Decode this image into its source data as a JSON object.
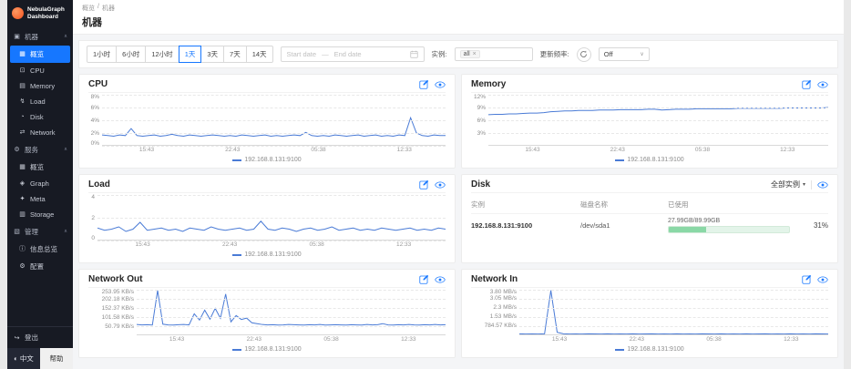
{
  "app": {
    "name_line1": "NebulaGraph",
    "name_line2": "Dashboard"
  },
  "header": {
    "breadcrumb": [
      "概览",
      "机器"
    ],
    "separator": "/",
    "title": "机器"
  },
  "sidebar": {
    "sections": [
      {
        "id": "machine",
        "label": "机器",
        "icon": "machine",
        "items": [
          {
            "id": "machine-overview",
            "label": "概览",
            "icon": "overview",
            "active": true
          },
          {
            "id": "cpu",
            "label": "CPU",
            "icon": "cpu"
          },
          {
            "id": "memory",
            "label": "Memory",
            "icon": "memory"
          },
          {
            "id": "load",
            "label": "Load",
            "icon": "load"
          },
          {
            "id": "disk",
            "label": "Disk",
            "icon": "disk"
          },
          {
            "id": "network",
            "label": "Network",
            "icon": "network"
          }
        ]
      },
      {
        "id": "service",
        "label": "服务",
        "icon": "service",
        "items": [
          {
            "id": "service-overview",
            "label": "概览",
            "icon": "overview"
          },
          {
            "id": "graph",
            "label": "Graph",
            "icon": "graph"
          },
          {
            "id": "meta",
            "label": "Meta",
            "icon": "meta"
          },
          {
            "id": "storage",
            "label": "Storage",
            "icon": "storage"
          }
        ]
      },
      {
        "id": "manage",
        "label": "管理",
        "icon": "manage",
        "items": [
          {
            "id": "info-overview",
            "label": "信息总览",
            "icon": "info"
          },
          {
            "id": "config",
            "label": "配置",
            "icon": "config"
          }
        ]
      }
    ],
    "logout_label": "登出",
    "lang_button": "中文",
    "help_button": "帮助"
  },
  "toolbar": {
    "time_ranges": [
      "1小时",
      "6小时",
      "12小时",
      "1天",
      "3天",
      "7天",
      "14天"
    ],
    "active_range": "1天",
    "start_placeholder": "Start date",
    "range_separator": "—",
    "end_placeholder": "End date",
    "instance_label": "实例:",
    "instance_value": "all",
    "frequency_label": "更新频率:",
    "frequency_value": "Off"
  },
  "charts": [
    {
      "id": "cpu",
      "type": "line",
      "title": "CPU",
      "legend": "192.168.8.131:9100",
      "ymin": 0,
      "ymax": 8,
      "yticks": [
        {
          "label": "8%",
          "value": 8
        },
        {
          "label": "6%",
          "value": 6
        },
        {
          "label": "4%",
          "value": 4
        },
        {
          "label": "2%",
          "value": 2
        },
        {
          "label": "0%",
          "value": 0
        }
      ],
      "xticks": [
        "15:43",
        "22:43",
        "05:38",
        "12:33"
      ],
      "values": [
        1.7,
        1.6,
        1.5,
        1.7,
        1.6,
        2.7,
        1.6,
        1.5,
        1.6,
        1.7,
        1.5,
        1.6,
        1.8,
        1.6,
        1.5,
        1.7,
        1.6,
        1.5,
        1.6,
        1.7,
        1.6,
        1.5,
        1.6,
        1.5,
        1.7,
        1.6,
        1.5,
        1.6,
        1.7,
        1.5,
        1.6,
        1.5,
        1.6,
        1.7,
        1.6,
        2.1,
        1.6,
        1.5,
        1.6,
        1.5,
        1.7,
        1.6,
        1.5,
        1.6,
        1.7,
        1.5,
        1.6,
        1.7,
        1.5,
        1.6,
        1.5,
        1.7,
        1.6,
        4.4,
        2.0,
        1.6,
        1.5,
        1.7,
        1.6,
        1.6
      ]
    },
    {
      "id": "memory",
      "type": "line",
      "title": "Memory",
      "legend": "192.168.8.131:9100",
      "ymin": 0,
      "ymax": 12,
      "yticks": [
        {
          "label": "12%",
          "value": 12
        },
        {
          "label": "9%",
          "value": 9
        },
        {
          "label": "6%",
          "value": 6
        },
        {
          "label": "3%",
          "value": 3
        }
      ],
      "xticks": [
        "15:43",
        "22:43",
        "05:38",
        "12:33"
      ],
      "values": [
        7.3,
        7.4,
        7.4,
        7.5,
        7.5,
        7.6,
        7.7,
        7.7,
        7.8,
        8.0,
        8.1,
        8.2,
        8.2,
        8.3,
        8.3,
        8.3,
        8.4,
        8.4,
        8.4,
        8.5,
        8.5,
        8.5,
        8.5,
        8.6,
        8.6,
        8.4,
        8.5,
        8.6,
        8.6,
        8.6,
        8.7,
        8.7,
        8.7,
        8.7,
        8.7,
        8.7,
        8.8,
        8.8,
        8.8,
        8.8,
        8.8,
        8.8,
        8.8,
        8.9,
        8.9,
        8.9,
        8.9,
        8.9,
        8.9,
        9.0
      ]
    },
    {
      "id": "load",
      "type": "line",
      "title": "Load",
      "legend": "192.168.8.131:9100",
      "ymin": 0,
      "ymax": 4,
      "yticks": [
        {
          "label": "4",
          "value": 4
        },
        {
          "label": "2",
          "value": 2
        },
        {
          "label": "0",
          "value": 0
        }
      ],
      "xticks": [
        "15:43",
        "22:43",
        "05:38",
        "12:33"
      ],
      "values": [
        1.1,
        0.9,
        1.0,
        1.2,
        0.8,
        1.0,
        1.6,
        0.9,
        1.0,
        1.1,
        0.9,
        1.0,
        0.8,
        1.1,
        1.0,
        0.9,
        1.2,
        1.0,
        0.9,
        1.0,
        1.1,
        0.9,
        1.0,
        1.7,
        1.0,
        0.9,
        1.1,
        1.0,
        0.8,
        1.0,
        1.1,
        0.9,
        1.0,
        1.2,
        0.9,
        1.0,
        1.1,
        0.9,
        1.0,
        0.9,
        1.1,
        1.0,
        0.9,
        1.0,
        1.1,
        0.9,
        1.0,
        0.9,
        1.1,
        1.0
      ]
    },
    {
      "id": "network-out",
      "type": "line",
      "title": "Network Out",
      "legend": "192.168.8.131:9100",
      "ymin": 0,
      "ymax": 253.95,
      "yticks": [
        {
          "label": "253.95 KB/s",
          "value": 253.95
        },
        {
          "label": "202.18 KB/s",
          "value": 202.18
        },
        {
          "label": "152.37 KB/s",
          "value": 152.37
        },
        {
          "label": "101.58 KB/s",
          "value": 101.58
        },
        {
          "label": "50.79 KB/s",
          "value": 50.79
        }
      ],
      "xticks": [
        "15:43",
        "22:43",
        "05:38",
        "12:33"
      ],
      "values": [
        60,
        58,
        59,
        57,
        254,
        62,
        58,
        57,
        59,
        60,
        58,
        120,
        85,
        140,
        90,
        150,
        95,
        230,
        75,
        110,
        88,
        96,
        70,
        65,
        60,
        58,
        59,
        57,
        58,
        60,
        59,
        58,
        57,
        59,
        58,
        60,
        57,
        58,
        59,
        58,
        57,
        59,
        58,
        57,
        60,
        58,
        59,
        65,
        58,
        57,
        59,
        58,
        60,
        58,
        57,
        59,
        58,
        60,
        58,
        59
      ]
    },
    {
      "id": "network-in",
      "type": "line",
      "title": "Network In",
      "legend": "192.168.8.131:9100",
      "ymin": 0,
      "ymax": 3.8,
      "yticks": [
        {
          "label": "3.80 MB/s",
          "value": 3.8
        },
        {
          "label": "3.05 MB/s",
          "value": 3.05
        },
        {
          "label": "2.3 MB/s",
          "value": 2.3
        },
        {
          "label": "1.53 MB/s",
          "value": 1.53
        },
        {
          "label": "784.57 KB/s",
          "value": 0.784
        }
      ],
      "xticks": [
        "15:43",
        "22:43",
        "05:38",
        "12:33"
      ],
      "values": [
        0.12,
        0.1,
        0.11,
        0.1,
        0.12,
        3.8,
        0.25,
        0.12,
        0.1,
        0.11,
        0.1,
        0.12,
        0.11,
        0.1,
        0.12,
        0.1,
        0.11,
        0.1,
        0.12,
        0.1,
        0.11,
        0.12,
        0.1,
        0.11,
        0.1,
        0.12,
        0.1,
        0.11,
        0.1,
        0.12,
        0.11,
        0.1,
        0.12,
        0.1,
        0.11,
        0.1,
        0.12,
        0.1,
        0.11,
        0.12,
        0.1,
        0.11,
        0.1,
        0.12,
        0.1,
        0.11,
        0.1,
        0.12,
        0.11,
        0.1
      ]
    }
  ],
  "disk": {
    "title": "Disk",
    "filter_label": "全部实例",
    "columns": [
      "实例",
      "磁盘名称",
      "已使用"
    ],
    "rows": [
      {
        "instance": "192.168.8.131:9100",
        "disk_name": "/dev/sda1",
        "used": "27.99GB/89.99GB",
        "percent": 31,
        "percent_label": "31%"
      }
    ]
  },
  "colors": {
    "accent": "#1677ff",
    "line": "#4a7bd6",
    "green": "#8ad8a6",
    "sidebar_bg": "#171a23"
  }
}
